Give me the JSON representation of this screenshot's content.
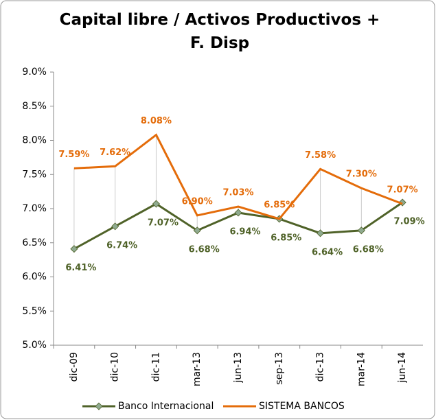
{
  "chart_data": {
    "type": "line",
    "title": "Capital libre / Activos Productivos + F. Disp",
    "categories": [
      "dic-09",
      "dic-10",
      "dic-11",
      "mar-13",
      "jun-13",
      "sep-13",
      "dic-13",
      "mar-14",
      "jun-14"
    ],
    "series": [
      {
        "name": "Banco Internacional",
        "color": "#4f6228",
        "marker_color": "#8faa8f",
        "values": [
          6.41,
          6.74,
          7.07,
          6.68,
          6.94,
          6.85,
          6.64,
          6.68,
          7.09
        ],
        "value_labels": [
          "6.41%",
          "6.74%",
          "7.07%",
          "6.68%",
          "6.94%",
          "6.85%",
          "6.64%",
          "6.68%",
          "7.09%"
        ]
      },
      {
        "name": "SISTEMA BANCOS",
        "color": "#e46c0a",
        "values": [
          7.59,
          7.62,
          8.08,
          6.9,
          7.03,
          6.85,
          7.58,
          7.3,
          7.07
        ],
        "value_labels": [
          "7.59%",
          "7.62%",
          "8.08%",
          "6.90%",
          "7.03%",
          "6.85%",
          "7.58%",
          "7.30%",
          "7.07%"
        ]
      }
    ],
    "ylim": [
      5,
      9
    ],
    "yticks": [
      {
        "value": 5,
        "label": "5.0%"
      },
      {
        "value": 5.5,
        "label": "5.5%"
      },
      {
        "value": 6,
        "label": "6.0%"
      },
      {
        "value": 6.5,
        "label": "6.5%"
      },
      {
        "value": 7,
        "label": "7.0%"
      },
      {
        "value": 7.5,
        "label": "7.5%"
      },
      {
        "value": 8,
        "label": "8.0%"
      },
      {
        "value": 8.5,
        "label": "8.5%"
      },
      {
        "value": 9,
        "label": "9.0%"
      }
    ],
    "legend": "bottom",
    "high_low_lines": true
  }
}
